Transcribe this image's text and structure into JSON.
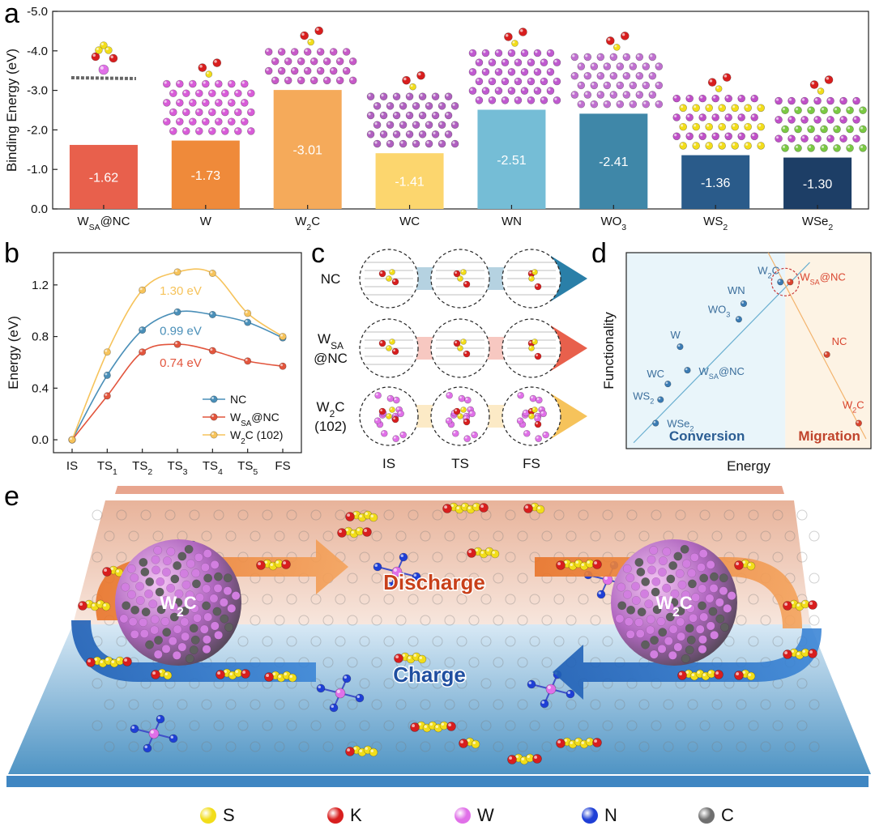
{
  "panels": {
    "a": "a",
    "b": "b",
    "c": "c",
    "d": "d",
    "e": "e"
  },
  "chart_a": {
    "type": "bar",
    "categories": [
      "W_SA@NC",
      "W",
      "W2C",
      "WC",
      "WN",
      "WO3",
      "WS2",
      "WSe2"
    ],
    "category_labels": [
      {
        "main": "W",
        "sub": "SA",
        "rest": "@NC"
      },
      {
        "main": "W",
        "sub": "",
        "rest": ""
      },
      {
        "main": "W",
        "sub": "2",
        "rest": "C"
      },
      {
        "main": "WC",
        "sub": "",
        "rest": ""
      },
      {
        "main": "WN",
        "sub": "",
        "rest": ""
      },
      {
        "main": "WO",
        "sub": "3",
        "rest": ""
      },
      {
        "main": "WS",
        "sub": "2",
        "rest": ""
      },
      {
        "main": "WSe",
        "sub": "2",
        "rest": ""
      }
    ],
    "values": [
      -1.62,
      -1.73,
      -3.01,
      -1.41,
      -2.51,
      -2.41,
      -1.36,
      -1.3
    ],
    "value_labels": [
      "-1.62",
      "-1.73",
      "-3.01",
      "-1.41",
      "-2.51",
      "-2.41",
      "-1.36",
      "-1.30"
    ],
    "colors": [
      "#e8604c",
      "#ef8a3a",
      "#f5aa5a",
      "#fcd66e",
      "#75bdd6",
      "#3f87a8",
      "#2a5b8a",
      "#1d3e66"
    ],
    "ylabel": "Binding Energy (eV)",
    "yticks": [
      0.0,
      -1.0,
      -2.0,
      -3.0,
      -4.0,
      -5.0
    ],
    "ytick_labels": [
      "0.0",
      "-1.0",
      "-2.0",
      "-3.0",
      "-4.0",
      "-5.0"
    ],
    "ylim": [
      0,
      -5
    ]
  },
  "chart_b": {
    "type": "line",
    "categories": [
      "IS",
      "TS1",
      "TS2",
      "TS3",
      "TS4",
      "TS5",
      "FS"
    ],
    "category_labels": [
      {
        "main": "IS",
        "sub": ""
      },
      {
        "main": "TS",
        "sub": "1"
      },
      {
        "main": "TS",
        "sub": "2"
      },
      {
        "main": "TS",
        "sub": "3"
      },
      {
        "main": "TS",
        "sub": "4"
      },
      {
        "main": "TS",
        "sub": "5"
      },
      {
        "main": "FS",
        "sub": ""
      }
    ],
    "ylabel": "Energy (eV)",
    "yticks": [
      0.0,
      0.4,
      0.8,
      1.2
    ],
    "ytick_labels": [
      "0.0",
      "0.4",
      "0.8",
      "1.2"
    ],
    "ylim": [
      -0.1,
      1.45
    ],
    "series": [
      {
        "name": "NC",
        "legend": {
          "main": "NC",
          "sub": "",
          "rest": ""
        },
        "color": "#4a8fb8",
        "values": [
          0.0,
          0.5,
          0.85,
          0.99,
          0.97,
          0.91,
          0.79
        ],
        "annotation": "0.99 eV"
      },
      {
        "name": "W_SA@NC",
        "legend": {
          "main": "W",
          "sub": "SA",
          "rest": "@NC"
        },
        "color": "#e2553d",
        "values": [
          0.0,
          0.34,
          0.68,
          0.74,
          0.69,
          0.61,
          0.57
        ],
        "annotation": "0.74 eV"
      },
      {
        "name": "W2C (102)",
        "legend": {
          "main": "W",
          "sub": "2",
          "rest": "C (102)"
        },
        "color": "#f6c35b",
        "values": [
          0.0,
          0.68,
          1.16,
          1.3,
          1.29,
          0.98,
          0.8
        ],
        "annotation": "1.30 eV"
      }
    ]
  },
  "panel_c": {
    "rows": [
      {
        "label": [
          "NC"
        ],
        "color": "#2a7fa8"
      },
      {
        "label": [
          "W_SA",
          "@NC"
        ],
        "color": "#e8604c"
      },
      {
        "label": [
          "W2C",
          "(102)"
        ],
        "color": "#f6c35b"
      }
    ],
    "row_labels_rich": [
      [
        {
          "main": "NC",
          "sub": ""
        }
      ],
      [
        {
          "main": "W",
          "sub": "SA"
        },
        {
          "main": "@NC",
          "sub": ""
        }
      ],
      [
        {
          "main": "W",
          "sub": "2",
          "rest": "C"
        },
        {
          "main": "(102)",
          "sub": ""
        }
      ]
    ],
    "columns": [
      "IS",
      "TS",
      "FS"
    ]
  },
  "chart_d": {
    "type": "scatter",
    "xlabel": "Energy",
    "ylabel": "Functionality",
    "regions": [
      "Conversion",
      "Migration"
    ],
    "points_left": [
      {
        "label": "WSe2",
        "main": "WSe",
        "sub": "2",
        "rest": "",
        "x": 0.12,
        "y": 0.13
      },
      {
        "label": "WS2",
        "main": "WS",
        "sub": "2",
        "rest": "",
        "x": 0.14,
        "y": 0.25
      },
      {
        "label": "WC",
        "main": "WC",
        "sub": "",
        "rest": "",
        "x": 0.17,
        "y": 0.33
      },
      {
        "label": "W_SA@NC",
        "main": "W",
        "sub": "SA",
        "rest": "@NC",
        "x": 0.25,
        "y": 0.4
      },
      {
        "label": "W",
        "main": "W",
        "sub": "",
        "rest": "",
        "x": 0.22,
        "y": 0.52
      },
      {
        "label": "WO3",
        "main": "WO",
        "sub": "3",
        "rest": "",
        "x": 0.46,
        "y": 0.66
      },
      {
        "label": "WN",
        "main": "WN",
        "sub": "",
        "rest": "",
        "x": 0.48,
        "y": 0.74
      },
      {
        "label": "W2C",
        "main": "W",
        "sub": "2",
        "rest": "C",
        "x": 0.63,
        "y": 0.85
      }
    ],
    "points_right": [
      {
        "label": "W_SA@NC",
        "main": "W",
        "sub": "SA",
        "rest": "@NC",
        "x": 0.67,
        "y": 0.85
      },
      {
        "label": "NC",
        "main": "NC",
        "sub": "",
        "rest": "",
        "x": 0.82,
        "y": 0.48
      },
      {
        "label": "W2C",
        "main": "W",
        "sub": "2",
        "rest": "C",
        "x": 0.95,
        "y": 0.13
      }
    ]
  },
  "panel_e": {
    "particle_label": {
      "main": "W",
      "sub": "2",
      "rest": "C"
    },
    "discharge": "Discharge",
    "charge": "Charge"
  },
  "legend": [
    {
      "symbol": "S",
      "color": "#f2dd1a"
    },
    {
      "symbol": "K",
      "color": "#d81e1e"
    },
    {
      "symbol": "W",
      "color": "#e070e8"
    },
    {
      "symbol": "N",
      "color": "#1f3fd6"
    },
    {
      "symbol": "C",
      "color": "#6f6f6f"
    }
  ]
}
